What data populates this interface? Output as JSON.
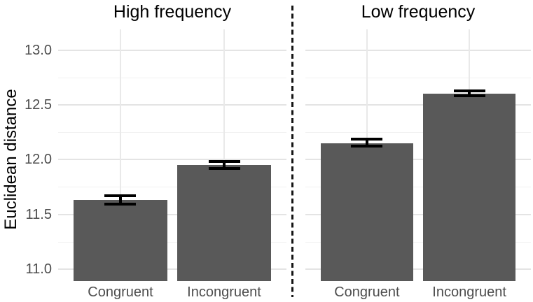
{
  "chart_data": {
    "type": "bar",
    "ylabel": "Euclidean distance",
    "xlabel": "",
    "ylim": [
      10.89,
      13.19
    ],
    "yticks": [
      13.0,
      12.5,
      12.0,
      11.5,
      11.0
    ],
    "ytick_labels": [
      "13.0",
      "12.5",
      "12.0",
      "11.5",
      "11.0"
    ],
    "minor_gridlines": [
      12.75,
      12.25,
      11.75,
      11.25
    ],
    "grid": "on",
    "legend": "none",
    "facets": [
      {
        "title": "High frequency",
        "categories": [
          "Congruent",
          "Incongruent"
        ],
        "values": [
          11.63,
          11.95
        ],
        "error_low": [
          11.59,
          11.92
        ],
        "error_high": [
          11.67,
          11.98
        ]
      },
      {
        "title": "Low frequency",
        "categories": [
          "Congruent",
          "Incongruent"
        ],
        "values": [
          12.15,
          12.6
        ],
        "error_low": [
          12.12,
          12.58
        ],
        "error_high": [
          12.19,
          12.63
        ]
      }
    ],
    "colors": {
      "bar_fill": "#595959",
      "error_bar": "#000000",
      "grid_major": "#e4e4e4",
      "grid_minor": "#f1f1f1",
      "axis_text": "#4d4d4d",
      "title_text": "#000000",
      "divider": "#141414",
      "background": "#ffffff"
    }
  }
}
